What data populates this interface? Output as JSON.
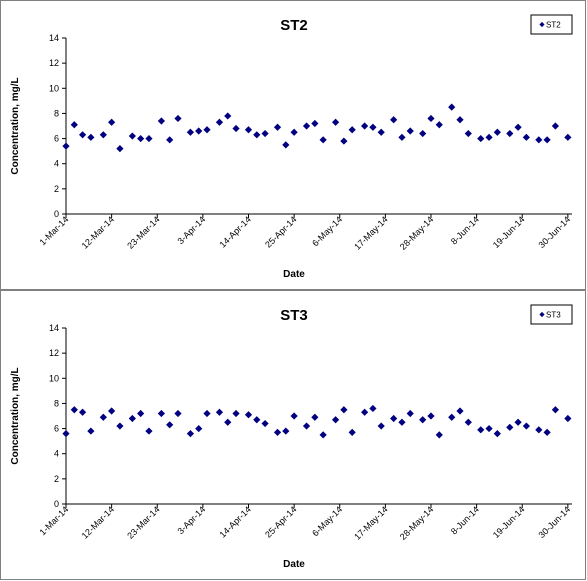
{
  "chart_data": [
    {
      "type": "scatter",
      "title": "ST2",
      "xlabel": "Date",
      "ylabel": "Concentration, mg/L",
      "ylim": [
        0,
        14
      ],
      "yticks": [
        0,
        2,
        4,
        6,
        8,
        10,
        12,
        14
      ],
      "xticks": [
        "1-Mar-14",
        "12-Mar-14",
        "23-Mar-14",
        "3-Apr-14",
        "14-Apr-14",
        "25-Apr-14",
        "6-May-14",
        "17-May-14",
        "28-May-14",
        "8-Jun-14",
        "19-Jun-14",
        "30-Jun-14"
      ],
      "xlim": [
        "1-Mar-14",
        "1-Jul-14"
      ],
      "grid": false,
      "legend_position": "top-right",
      "color": "#000080",
      "marker": "diamond",
      "series": [
        {
          "name": "ST2",
          "x": [
            "1-Mar-14",
            "3-Mar-14",
            "5-Mar-14",
            "7-Mar-14",
            "10-Mar-14",
            "12-Mar-14",
            "14-Mar-14",
            "17-Mar-14",
            "19-Mar-14",
            "21-Mar-14",
            "24-Mar-14",
            "26-Mar-14",
            "28-Mar-14",
            "31-Mar-14",
            "2-Apr-14",
            "4-Apr-14",
            "7-Apr-14",
            "9-Apr-14",
            "11-Apr-14",
            "14-Apr-14",
            "16-Apr-14",
            "18-Apr-14",
            "21-Apr-14",
            "23-Apr-14",
            "25-Apr-14",
            "28-Apr-14",
            "30-Apr-14",
            "2-May-14",
            "5-May-14",
            "7-May-14",
            "9-May-14",
            "12-May-14",
            "14-May-14",
            "16-May-14",
            "19-May-14",
            "21-May-14",
            "23-May-14",
            "26-May-14",
            "28-May-14",
            "30-May-14",
            "2-Jun-14",
            "4-Jun-14",
            "6-Jun-14",
            "9-Jun-14",
            "11-Jun-14",
            "13-Jun-14",
            "16-Jun-14",
            "18-Jun-14",
            "20-Jun-14",
            "23-Jun-14",
            "25-Jun-14",
            "27-Jun-14",
            "30-Jun-14"
          ],
          "y": [
            5.4,
            7.1,
            6.3,
            6.1,
            6.3,
            7.3,
            5.2,
            6.2,
            6.0,
            6.0,
            7.4,
            5.9,
            7.6,
            6.5,
            6.6,
            6.7,
            7.3,
            7.8,
            6.8,
            6.7,
            6.3,
            6.4,
            6.9,
            5.5,
            6.5,
            7.0,
            7.2,
            5.9,
            7.3,
            5.8,
            6.7,
            7.0,
            6.9,
            6.5,
            7.5,
            6.1,
            6.6,
            6.4,
            7.6,
            7.1,
            8.5,
            7.5,
            6.4,
            6.0,
            6.1,
            6.5,
            6.4,
            6.9,
            6.1,
            5.9,
            5.9,
            7.0,
            6.1
          ]
        }
      ]
    },
    {
      "type": "scatter",
      "title": "ST3",
      "xlabel": "Date",
      "ylabel": "Concentration, mg/L",
      "ylim": [
        0,
        14
      ],
      "yticks": [
        0,
        2,
        4,
        6,
        8,
        10,
        12,
        14
      ],
      "xticks": [
        "1-Mar-14",
        "12-Mar-14",
        "23-Mar-14",
        "3-Apr-14",
        "14-Apr-14",
        "25-Apr-14",
        "6-May-14",
        "17-May-14",
        "28-May-14",
        "8-Jun-14",
        "19-Jun-14",
        "30-Jun-14"
      ],
      "xlim": [
        "1-Mar-14",
        "1-Jul-14"
      ],
      "grid": false,
      "legend_position": "top-right",
      "color": "#000080",
      "marker": "diamond",
      "series": [
        {
          "name": "ST3",
          "x": [
            "1-Mar-14",
            "3-Mar-14",
            "5-Mar-14",
            "7-Mar-14",
            "10-Mar-14",
            "12-Mar-14",
            "14-Mar-14",
            "17-Mar-14",
            "19-Mar-14",
            "21-Mar-14",
            "24-Mar-14",
            "26-Mar-14",
            "28-Mar-14",
            "31-Mar-14",
            "2-Apr-14",
            "4-Apr-14",
            "7-Apr-14",
            "9-Apr-14",
            "11-Apr-14",
            "14-Apr-14",
            "16-Apr-14",
            "18-Apr-14",
            "21-Apr-14",
            "23-Apr-14",
            "25-Apr-14",
            "28-Apr-14",
            "30-Apr-14",
            "2-May-14",
            "5-May-14",
            "7-May-14",
            "9-May-14",
            "12-May-14",
            "14-May-14",
            "16-May-14",
            "19-May-14",
            "21-May-14",
            "23-May-14",
            "26-May-14",
            "28-May-14",
            "30-May-14",
            "2-Jun-14",
            "4-Jun-14",
            "6-Jun-14",
            "9-Jun-14",
            "11-Jun-14",
            "13-Jun-14",
            "16-Jun-14",
            "18-Jun-14",
            "20-Jun-14",
            "23-Jun-14",
            "25-Jun-14",
            "27-Jun-14",
            "30-Jun-14"
          ],
          "y": [
            5.6,
            7.5,
            7.3,
            5.8,
            6.9,
            7.4,
            6.2,
            6.8,
            7.2,
            5.8,
            7.2,
            6.3,
            7.2,
            5.6,
            6.0,
            7.2,
            7.3,
            6.5,
            7.2,
            7.1,
            6.7,
            6.4,
            5.7,
            5.8,
            7.0,
            6.2,
            6.9,
            5.5,
            6.7,
            7.5,
            5.7,
            7.3,
            7.6,
            6.2,
            6.8,
            6.5,
            7.2,
            6.7,
            7.0,
            5.5,
            6.9,
            7.4,
            6.5,
            5.9,
            6.0,
            5.6,
            6.1,
            6.5,
            6.2,
            5.9,
            5.7,
            7.5,
            6.8
          ]
        }
      ]
    }
  ]
}
